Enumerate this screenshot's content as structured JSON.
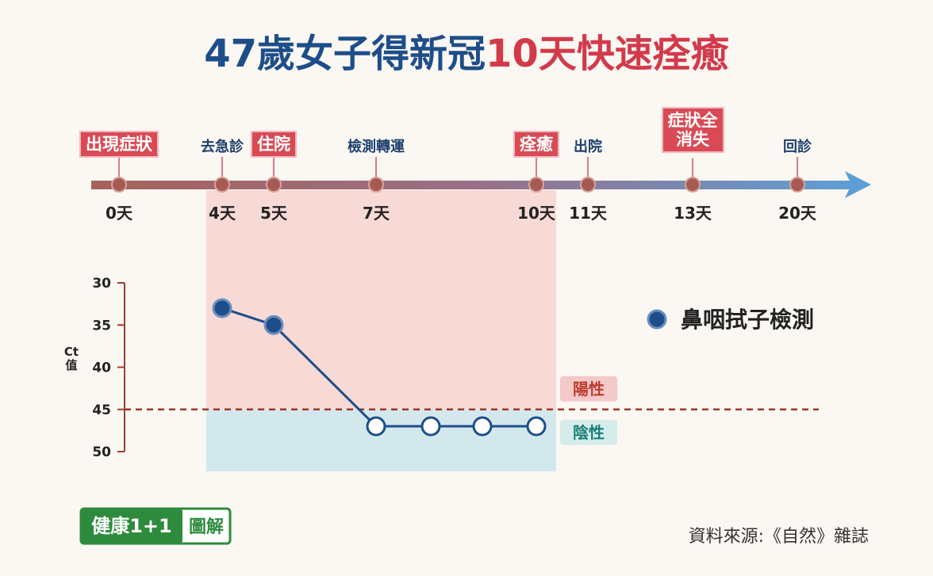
{
  "title": {
    "part1": "47歲女子得新冠",
    "part2": "10天快速痊癒"
  },
  "timeline": {
    "events": [
      {
        "label": "出現症狀",
        "day": "0天",
        "highlight": true
      },
      {
        "label": "去急診",
        "day": "4天",
        "highlight": false
      },
      {
        "label": "住院",
        "day": "5天",
        "highlight": true
      },
      {
        "label": "檢測轉運",
        "day": "7天",
        "highlight": false
      },
      {
        "label": "痊癒",
        "day": "10天",
        "highlight": true
      },
      {
        "label": "出院",
        "day": "11天",
        "highlight": false
      },
      {
        "label": "症狀全\n消失",
        "day": "13天",
        "highlight": true
      },
      {
        "label": "回診",
        "day": "20天",
        "highlight": false
      }
    ]
  },
  "chart_data": {
    "type": "line",
    "y_label": "Ct\n值",
    "ylim": [
      30,
      50
    ],
    "yticks": [
      30,
      35,
      40,
      45,
      50
    ],
    "y_inverted": true,
    "categories": [
      null,
      null,
      null,
      null,
      null,
      null
    ],
    "series": [
      {
        "name": "鼻咽拭子檢測",
        "color": "#1d4e8a",
        "values": [
          33,
          35,
          47,
          47,
          47,
          47
        ]
      }
    ],
    "threshold": {
      "value": 45,
      "positive_label": "陽性",
      "negative_label": "陰性"
    }
  },
  "source": "資料來源:《自然》雜誌",
  "logo": {
    "main": "健康1+1",
    "sub": "圖解"
  }
}
